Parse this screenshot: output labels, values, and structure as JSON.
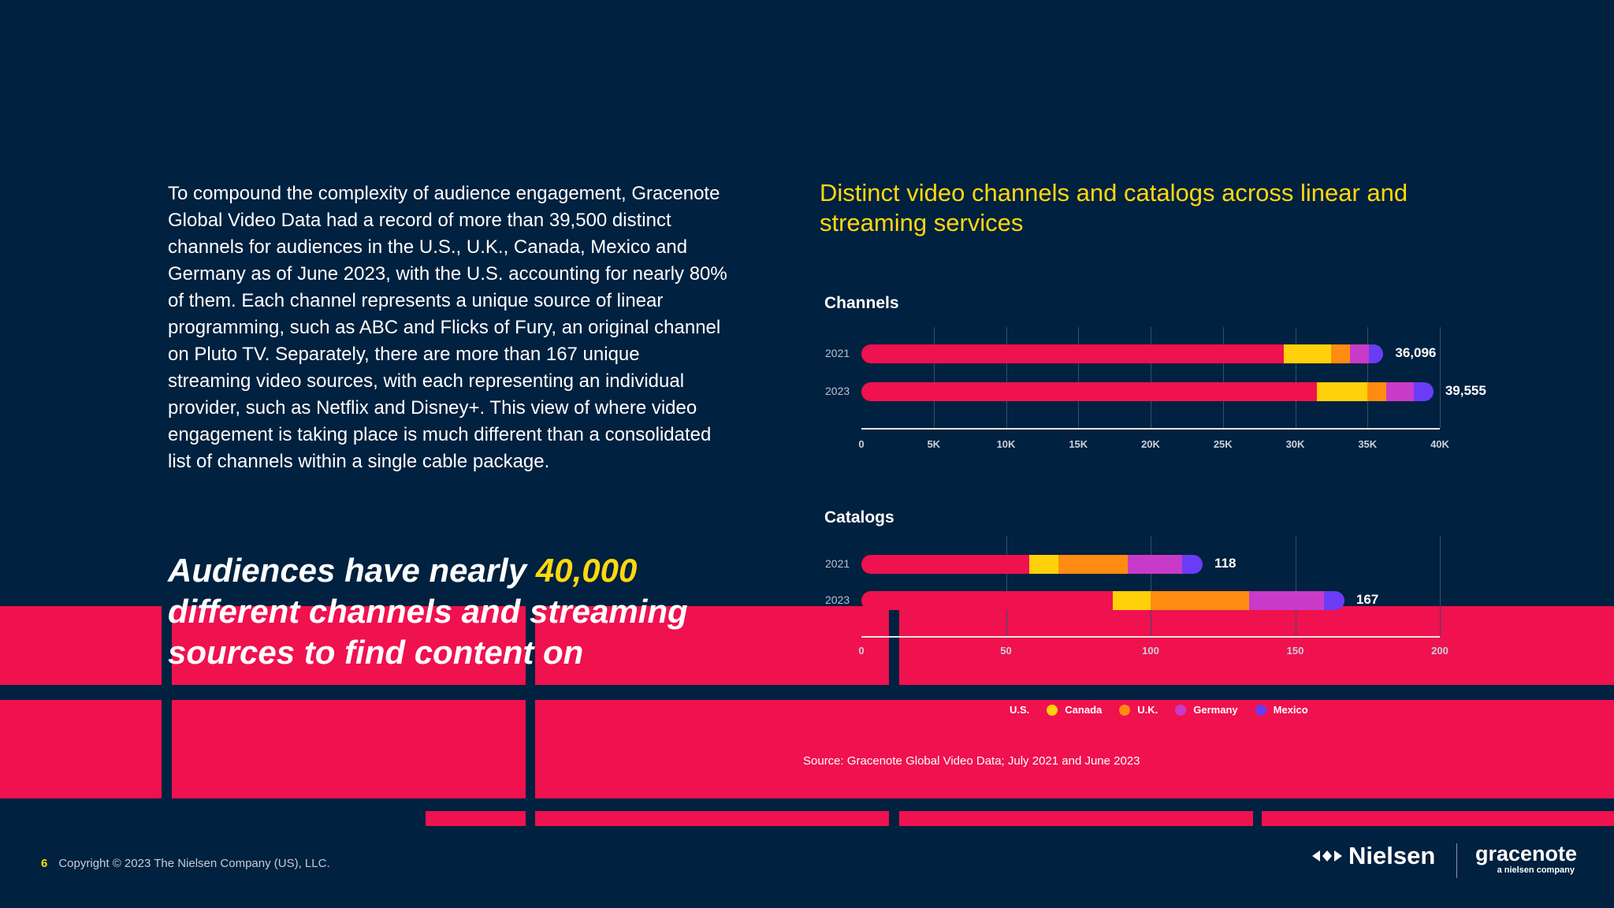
{
  "body_text": "To compound the complexity of audience engagement, Gracenote Global Video Data had a record of more than 39,500 distinct channels for audiences in the U.S., U.K., Canada, Mexico and Germany as of June 2023, with the U.S. accounting for nearly 80% of them. Each channel represents a unique source of linear programming, such as ABC and Flicks of Fury, an original channel on Pluto TV. Separately, there are more than 167 unique streaming video sources, with each representing an individual provider, such as Netflix and Disney+. This view of where video engagement is taking place is much different than a consolidated list of channels within a single cable package.",
  "pull_quote": {
    "before": "Audiences have nearly ",
    "highlight": "40,000",
    "after": " different channels and streaming sources to find content on"
  },
  "source": "Source: Gracenote Global Video Data; July 2021 and June 2023",
  "footer": {
    "page_number": "6",
    "copyright": "Copyright © 2023 The Nielsen Company (US), LLC.",
    "nielsen_logo_text": "Nielsen",
    "gracenote_logo_text": "gracenote",
    "gracenote_tagline": "a nielsen company"
  },
  "colors": {
    "background": "#00213f",
    "accent_yellow": "#ffd80f",
    "decor_pink": "#f0114f"
  },
  "icons": [
    "nielsen-logo-icon"
  ],
  "chart_data": {
    "title": "Distinct video channels and catalogs across linear and streaming services",
    "legend": [
      {
        "name": "U.S.",
        "color": "#f0114f"
      },
      {
        "name": "Canada",
        "color": "#ffd10a"
      },
      {
        "name": "U.K.",
        "color": "#ff8c10"
      },
      {
        "name": "Germany",
        "color": "#c83bc9"
      },
      {
        "name": "Mexico",
        "color": "#6b3cf6"
      }
    ],
    "legend_position": "bottom",
    "charts": [
      {
        "type": "bar",
        "orientation": "horizontal",
        "stacked": true,
        "section_label": "Channels",
        "categories": [
          "2021",
          "2023"
        ],
        "series": [
          {
            "name": "U.S.",
            "values": [
              29200,
              31500
            ]
          },
          {
            "name": "Canada",
            "values": [
              3300,
              3500
            ]
          },
          {
            "name": "U.K.",
            "values": [
              1300,
              1300
            ]
          },
          {
            "name": "Germany",
            "values": [
              1300,
              1900
            ]
          },
          {
            "name": "Mexico",
            "values": [
              996,
              1355
            ]
          }
        ],
        "totals": [
          "36,096",
          "39,555"
        ],
        "xticks": [
          "0",
          "5K",
          "10K",
          "15K",
          "20K",
          "25K",
          "30K",
          "35K",
          "40K"
        ],
        "xlim": [
          0,
          40000
        ],
        "grid": true
      },
      {
        "type": "bar",
        "orientation": "horizontal",
        "stacked": true,
        "section_label": "Catalogs",
        "categories": [
          "2021",
          "2023"
        ],
        "series": [
          {
            "name": "U.S.",
            "values": [
              58,
              87
            ]
          },
          {
            "name": "Canada",
            "values": [
              10,
              13
            ]
          },
          {
            "name": "U.K.",
            "values": [
              24,
              34
            ]
          },
          {
            "name": "Germany",
            "values": [
              19,
              26
            ]
          },
          {
            "name": "Mexico",
            "values": [
              7,
              7
            ]
          }
        ],
        "totals": [
          "118",
          "167"
        ],
        "xticks": [
          "0",
          "50",
          "100",
          "150",
          "200"
        ],
        "xlim": [
          0,
          200
        ],
        "grid": true
      }
    ]
  }
}
